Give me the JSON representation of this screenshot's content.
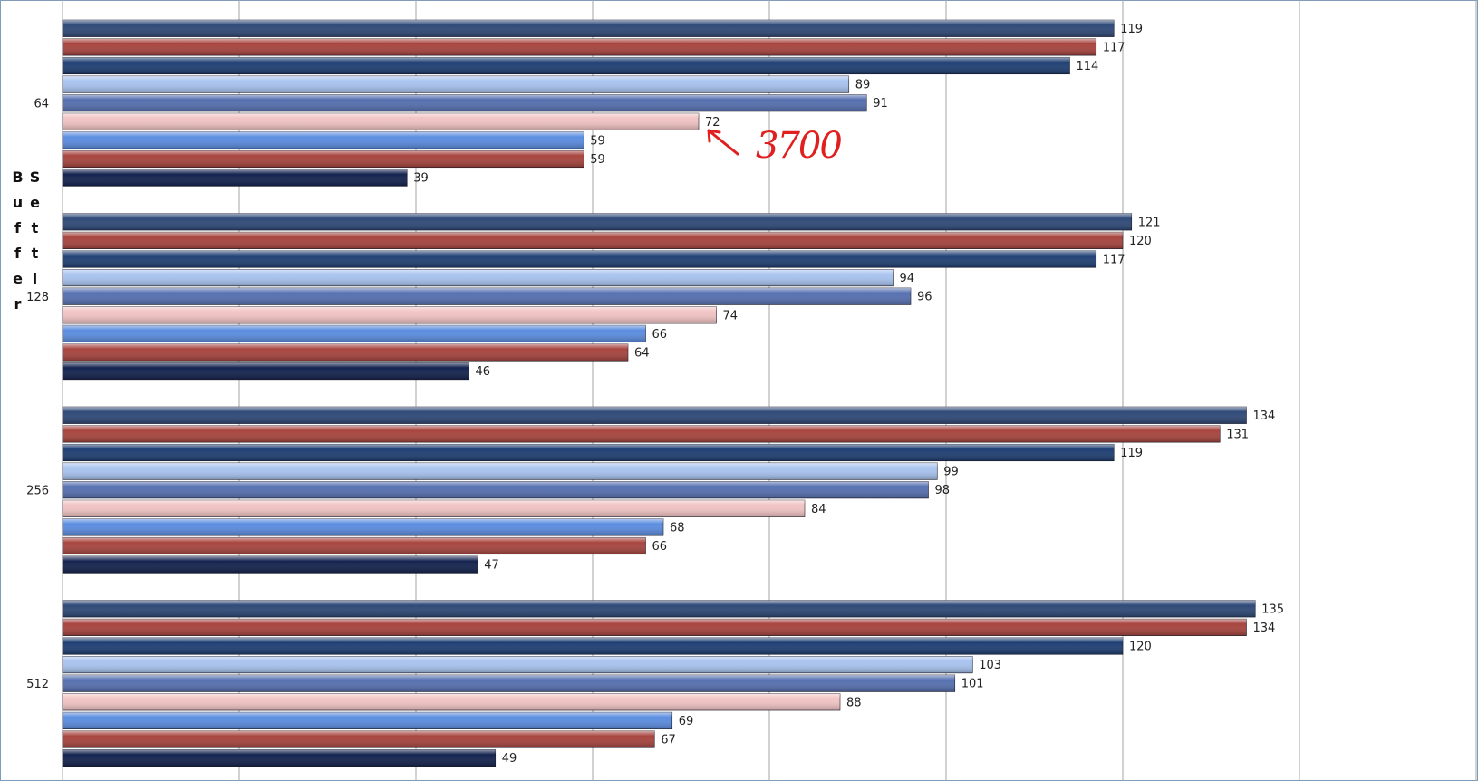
{
  "chart_data": {
    "type": "bar",
    "orientation": "horizontal",
    "y_label": "Buffer Setti",
    "categories": [
      "64",
      "128",
      "256",
      "512"
    ],
    "series": [
      {
        "color": "#2f4a78",
        "values": [
          119,
          121,
          134,
          135
        ]
      },
      {
        "color": "#a8453f",
        "values": [
          117,
          120,
          131,
          134
        ]
      },
      {
        "color": "#1f3f73",
        "values": [
          114,
          117,
          119,
          120
        ]
      },
      {
        "color": "#a9c4f0",
        "values": [
          89,
          94,
          99,
          103
        ]
      },
      {
        "color": "#5670b0",
        "values": [
          91,
          96,
          98,
          101
        ]
      },
      {
        "color": "#f2c4c4",
        "values": [
          72,
          74,
          84,
          88
        ]
      },
      {
        "color": "#5b8de0",
        "values": [
          59,
          66,
          68,
          69
        ]
      },
      {
        "color": "#a8453f",
        "values": [
          59,
          64,
          66,
          67
        ]
      },
      {
        "color": "#14234f",
        "values": [
          39,
          46,
          47,
          49
        ]
      }
    ],
    "xlim": [
      0,
      160
    ],
    "xticks": [
      0,
      20,
      40,
      60,
      80,
      100,
      120,
      140,
      160
    ],
    "grid": true,
    "annotations": [
      {
        "text": "3700",
        "color": "#e02020"
      }
    ]
  }
}
